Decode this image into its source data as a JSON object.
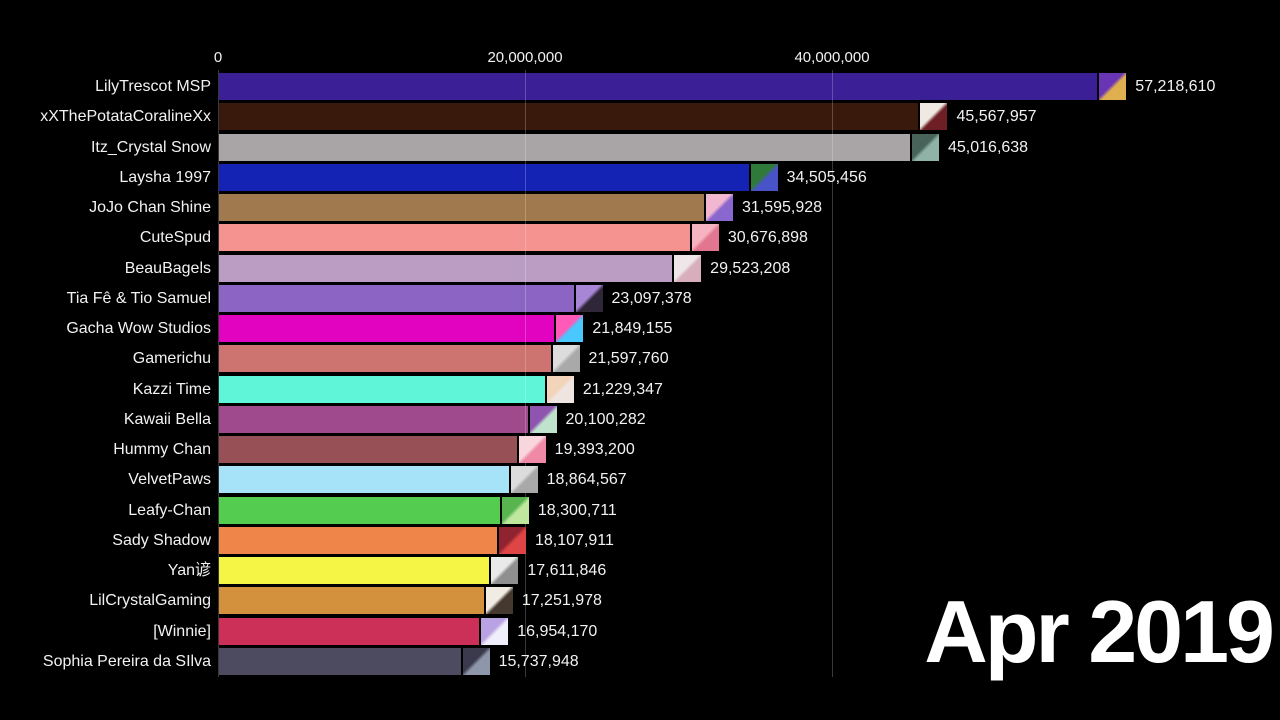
{
  "date_label": "Apr 2019",
  "axis": {
    "ticks": [
      {
        "label": "0",
        "value": 0
      },
      {
        "label": "20,000,000",
        "value": 20000000
      },
      {
        "label": "40,000,000",
        "value": 40000000
      }
    ]
  },
  "rows": [
    {
      "name": "LilyTrescot MSP",
      "value": 57218610,
      "value_label": "57,218,610",
      "color": "#3a1f96",
      "avatar_colors": [
        "#6a35b5",
        "#e0b050"
      ]
    },
    {
      "name": "xXThePotataCoralineXx",
      "value": 45567957,
      "value_label": "45,567,957",
      "color": "#3a190d",
      "avatar_colors": [
        "#efe9e2",
        "#6e1f26"
      ]
    },
    {
      "name": "Itz_Crystal Snow",
      "value": 45016638,
      "value_label": "45,016,638",
      "color": "#a9a5a7",
      "avatar_colors": [
        "#47635a",
        "#8fb3a6"
      ]
    },
    {
      "name": "Laysha 1997",
      "value": 34505456,
      "value_label": "34,505,456",
      "color": "#1423b4",
      "avatar_colors": [
        "#2f7a3a",
        "#4953c8"
      ]
    },
    {
      "name": "JoJo Chan Shine",
      "value": 31595928,
      "value_label": "31,595,928",
      "color": "#a1794f",
      "avatar_colors": [
        "#f2b7d0",
        "#8a66cf"
      ]
    },
    {
      "name": "CuteSpud",
      "value": 30676898,
      "value_label": "30,676,898",
      "color": "#f59390",
      "avatar_colors": [
        "#f6b3c0",
        "#e2758f"
      ]
    },
    {
      "name": "BeauBagels",
      "value": 29523208,
      "value_label": "29,523,208",
      "color": "#bb9dc4",
      "avatar_colors": [
        "#efe6e9",
        "#d9aebc"
      ]
    },
    {
      "name": "Tia Fê & Tio Samuel",
      "value": 23097378,
      "value_label": "23,097,378",
      "color": "#8c64c4",
      "avatar_colors": [
        "#a886d6",
        "#2f2738"
      ]
    },
    {
      "name": "Gacha Wow Studios",
      "value": 21849155,
      "value_label": "21,849,155",
      "color": "#e203c0",
      "avatar_colors": [
        "#ff5ab8",
        "#49c7ff"
      ]
    },
    {
      "name": "Gamerichu",
      "value": 21597760,
      "value_label": "21,597,760",
      "color": "#cd7370",
      "avatar_colors": [
        "#dcdcdc",
        "#a9a9a9"
      ]
    },
    {
      "name": "Kazzi Time",
      "value": 21229347,
      "value_label": "21,229,347",
      "color": "#5ff5d9",
      "avatar_colors": [
        "#f2d4bb",
        "#efe5e0"
      ]
    },
    {
      "name": "Kawaii Bella",
      "value": 20100282,
      "value_label": "20,100,282",
      "color": "#a04a8e",
      "avatar_colors": [
        "#8f54b0",
        "#bfe3cd"
      ]
    },
    {
      "name": "Hummy Chan",
      "value": 19393200,
      "value_label": "19,393,200",
      "color": "#965056",
      "avatar_colors": [
        "#f9d6de",
        "#ef89a6"
      ]
    },
    {
      "name": "VelvetPaws",
      "value": 18864567,
      "value_label": "18,864,567",
      "color": "#a6e3f9",
      "avatar_colors": [
        "#dcdcdc",
        "#a9a9a9"
      ]
    },
    {
      "name": "Leafy-Chan",
      "value": 18300711,
      "value_label": "18,300,711",
      "color": "#54cc50",
      "avatar_colors": [
        "#57b44f",
        "#bfe89e"
      ]
    },
    {
      "name": "Sady Shadow",
      "value": 18107911,
      "value_label": "18,107,911",
      "color": "#f08549",
      "avatar_colors": [
        "#8f2430",
        "#e04545"
      ]
    },
    {
      "name": "Yan谚",
      "value": 17611846,
      "value_label": "17,611,846",
      "color": "#f5f546",
      "avatar_colors": [
        "#e9e9e9",
        "#8f8f8f"
      ]
    },
    {
      "name": "LilCrystalGaming",
      "value": 17251978,
      "value_label": "17,251,978",
      "color": "#d3913d",
      "avatar_colors": [
        "#f1ece3",
        "#45382f"
      ]
    },
    {
      "name": "[Winnie]",
      "value": 16954170,
      "value_label": "16,954,170",
      "color": "#cc2f57",
      "avatar_colors": [
        "#b9a2e3",
        "#efeefa"
      ]
    },
    {
      "name": "Sophia Pereira da SIlva",
      "value": 15737948,
      "value_label": "15,737,948",
      "color": "#4d4b5f",
      "avatar_colors": [
        "#3a3a4c",
        "#8e97a9"
      ]
    }
  ],
  "chart_data": {
    "type": "bar",
    "orientation": "horizontal",
    "title": "",
    "xlabel": "",
    "ylabel": "",
    "date_annotation": "Apr 2019",
    "x_ticks": [
      0,
      20000000,
      40000000
    ],
    "x_tick_labels": [
      "0",
      "20,000,000",
      "40,000,000"
    ],
    "xlim": [
      0,
      68000000
    ],
    "grid": true,
    "categories": [
      "LilyTrescot MSP",
      "xXThePotataCoralineXx",
      "Itz_Crystal Snow",
      "Laysha 1997",
      "JoJo Chan Shine",
      "CuteSpud",
      "BeauBagels",
      "Tia Fê & Tio Samuel",
      "Gacha Wow Studios",
      "Gamerichu",
      "Kazzi Time",
      "Kawaii Bella",
      "Hummy Chan",
      "VelvetPaws",
      "Leafy-Chan",
      "Sady Shadow",
      "Yan谚",
      "LilCrystalGaming",
      "[Winnie]",
      "Sophia Pereira da SIlva"
    ],
    "values": [
      57218610,
      45567957,
      45016638,
      34505456,
      31595928,
      30676898,
      29523208,
      23097378,
      21849155,
      21597760,
      21229347,
      20100282,
      19393200,
      18864567,
      18300711,
      18107911,
      17611846,
      17251978,
      16954170,
      15737948
    ],
    "bar_colors": [
      "#3a1f96",
      "#3a190d",
      "#a9a5a7",
      "#1423b4",
      "#a1794f",
      "#f59390",
      "#bb9dc4",
      "#8c64c4",
      "#e203c0",
      "#cd7370",
      "#5ff5d9",
      "#a04a8e",
      "#965056",
      "#a6e3f9",
      "#54cc50",
      "#f08549",
      "#f5f546",
      "#d3913d",
      "#cc2f57",
      "#4d4b5f"
    ]
  }
}
